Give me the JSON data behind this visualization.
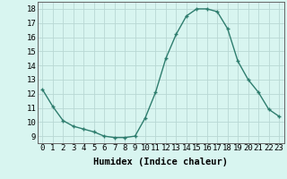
{
  "x": [
    0,
    1,
    2,
    3,
    4,
    5,
    6,
    7,
    8,
    9,
    10,
    11,
    12,
    13,
    14,
    15,
    16,
    17,
    18,
    19,
    20,
    21,
    22,
    23
  ],
  "y": [
    12.3,
    11.1,
    10.1,
    9.7,
    9.5,
    9.3,
    9.0,
    8.9,
    8.9,
    9.0,
    10.3,
    12.1,
    14.5,
    16.2,
    17.5,
    18.0,
    18.0,
    17.8,
    16.6,
    14.3,
    13.0,
    12.1,
    10.9,
    10.4
  ],
  "line_color": "#2e7d6e",
  "bg_color": "#d8f5f0",
  "grid_color": "#b8d8d4",
  "xlabel": "Humidex (Indice chaleur)",
  "xlim": [
    -0.5,
    23.5
  ],
  "ylim": [
    8.5,
    18.5
  ],
  "yticks": [
    9,
    10,
    11,
    12,
    13,
    14,
    15,
    16,
    17,
    18
  ],
  "xtick_labels": [
    "0",
    "1",
    "2",
    "3",
    "4",
    "5",
    "6",
    "7",
    "8",
    "9",
    "10",
    "11",
    "12",
    "13",
    "14",
    "15",
    "16",
    "17",
    "18",
    "19",
    "20",
    "21",
    "22",
    "23"
  ],
  "marker": "+",
  "marker_size": 3.5,
  "line_width": 1.0,
  "tick_fontsize": 6.5,
  "xlabel_fontsize": 7.5
}
